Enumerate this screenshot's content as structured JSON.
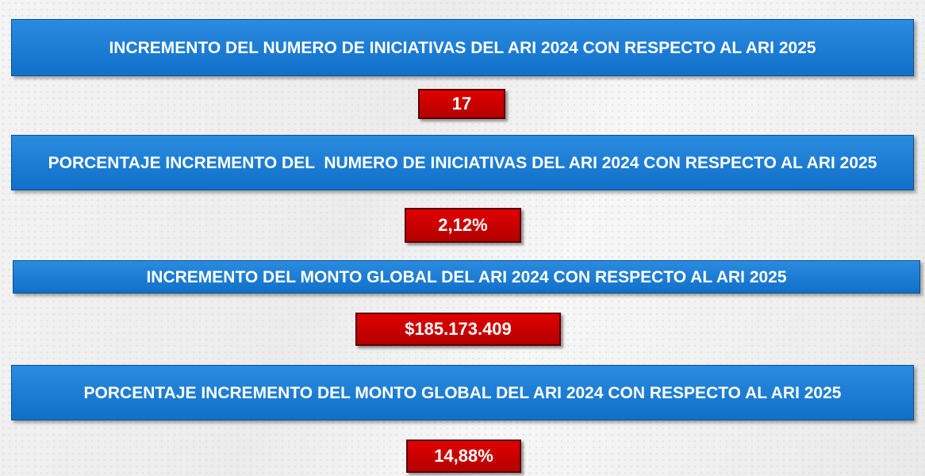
{
  "items": [
    {
      "title": "INCREMENTO DEL NUMERO DE INICIATIVAS DEL ARI 2024 CON RESPECTO AL ARI 2025",
      "value": "17"
    },
    {
      "title": "PORCENTAJE INCREMENTO DEL  NUMERO DE INICIATIVAS DEL ARI 2024 CON RESPECTO AL ARI 2025",
      "value": "2,12%"
    },
    {
      "title": "INCREMENTO DEL MONTO GLOBAL DEL ARI 2024 CON RESPECTO AL ARI 2025",
      "value": "$185.173.409"
    },
    {
      "title": "PORCENTAJE INCREMENTO DEL MONTO GLOBAL DEL ARI 2024 CON RESPECTO AL ARI 2025",
      "value": "14,88%"
    }
  ]
}
